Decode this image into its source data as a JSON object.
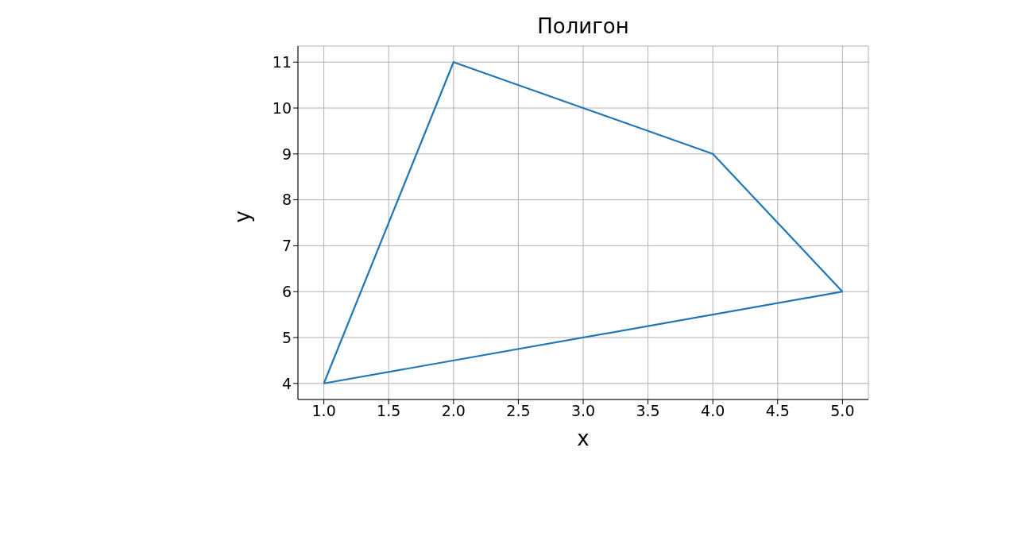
{
  "chart_data": {
    "type": "line",
    "title": "Полигон",
    "xlabel": "x",
    "ylabel": "y",
    "series": [
      {
        "color": "#1f77b4",
        "x": [
          1,
          2,
          4,
          5
        ],
        "values": [
          4,
          11,
          9,
          6
        ]
      },
      {
        "color": "#1f77b4",
        "x": [
          1,
          5
        ],
        "values": [
          4,
          6
        ]
      }
    ],
    "xlim": [
      0.8,
      5.2
    ],
    "ylim": [
      3.65,
      11.35
    ],
    "xticks": [
      {
        "value": 1,
        "label": "1.0"
      },
      {
        "value": 1.5,
        "label": "1.5"
      },
      {
        "value": 2,
        "label": "2.0"
      },
      {
        "value": 2.5,
        "label": "2.5"
      },
      {
        "value": 3,
        "label": "3.0"
      },
      {
        "value": 3.5,
        "label": "3.5"
      },
      {
        "value": 4,
        "label": "4.0"
      },
      {
        "value": 4.5,
        "label": "4.5"
      },
      {
        "value": 5,
        "label": "5.0"
      }
    ],
    "yticks": [
      4,
      5,
      6,
      7,
      8,
      9,
      10,
      11
    ],
    "grid": true,
    "marker": "none",
    "line_style": "solid"
  }
}
